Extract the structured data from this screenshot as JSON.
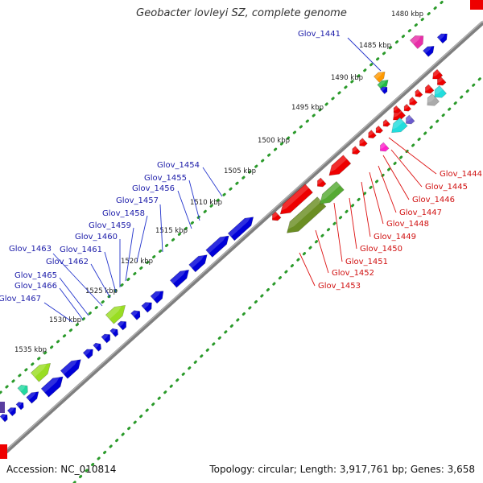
{
  "map": {
    "title": "Geobacter lovleyi SZ, complete genome",
    "accession_label": "Accession: NC_010814",
    "summary_label": "Topology: circular; Length: 3,917,761 bp; Genes: 3,658"
  },
  "colors": {
    "forward_genes": "#0000d8",
    "reverse_genes": "#ee0000",
    "backbone": "#7a7a7a",
    "tick_dots": "#2a9a2a",
    "forward_labels": "#1a1aa8",
    "reverse_labels": "#d01010"
  },
  "ticks": [
    {
      "label": "1480 kbp"
    },
    {
      "label": "1485 kbp"
    },
    {
      "label": "1490 kbp"
    },
    {
      "label": "1495 kbp"
    },
    {
      "label": "1500 kbp"
    },
    {
      "label": "1505 kbp"
    },
    {
      "label": "1510 kbp"
    },
    {
      "label": "1515 kbp"
    },
    {
      "label": "1520 kbp"
    },
    {
      "label": "1525 kbp"
    },
    {
      "label": "1530 kbp"
    },
    {
      "label": "1535 kbp"
    }
  ],
  "forward_gene_labels": [
    {
      "label": "Glov_1441"
    },
    {
      "label": "Glov_1454"
    },
    {
      "label": "Glov_1455"
    },
    {
      "label": "Glov_1456"
    },
    {
      "label": "Glov_1457"
    },
    {
      "label": "Glov_1458"
    },
    {
      "label": "Glov_1459"
    },
    {
      "label": "Glov_1460"
    },
    {
      "label": "Glov_1461"
    },
    {
      "label": "Glov_1462"
    },
    {
      "label": "Glov_1463"
    },
    {
      "label": "Glov_1465"
    },
    {
      "label": "Glov_1466"
    },
    {
      "label": "Glov_1467"
    }
  ],
  "reverse_gene_labels": [
    {
      "label": "Glov_1444"
    },
    {
      "label": "Glov_1445"
    },
    {
      "label": "Glov_1446"
    },
    {
      "label": "Glov_1447"
    },
    {
      "label": "Glov_1448"
    },
    {
      "label": "Glov_1449"
    },
    {
      "label": "Glov_1450"
    },
    {
      "label": "Glov_1451"
    },
    {
      "label": "Glov_1452"
    },
    {
      "label": "Glov_1453"
    }
  ]
}
